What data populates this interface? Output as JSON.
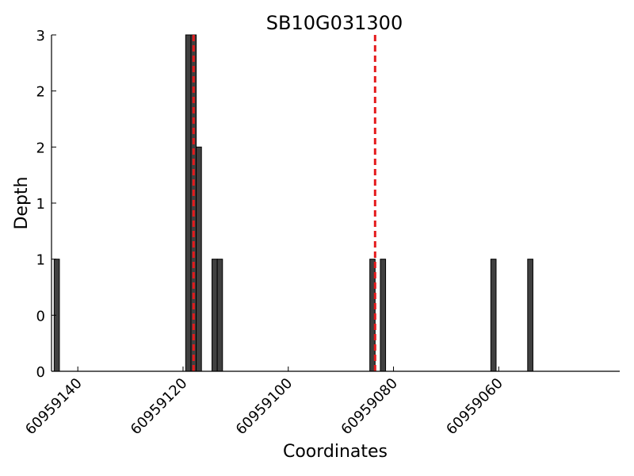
{
  "chart_data": {
    "type": "bar",
    "title": "SB10G031300",
    "xlabel": "Coordinates",
    "ylabel": "Depth",
    "x_axis_reversed": true,
    "xlim": [
      60959145,
      60959037
    ],
    "ylim": [
      0,
      3
    ],
    "x_ticks": [
      {
        "value": 60959140,
        "label": "60959140"
      },
      {
        "value": 60959120,
        "label": "60959120"
      },
      {
        "value": 60959100,
        "label": "60959100"
      },
      {
        "value": 60959080,
        "label": "60959080"
      },
      {
        "value": 60959060,
        "label": "60959060"
      }
    ],
    "y_ticks": [
      {
        "value": 0,
        "label": "0"
      },
      {
        "value": 0.5,
        "label": "0"
      },
      {
        "value": 1,
        "label": "1"
      },
      {
        "value": 1.5,
        "label": "1"
      },
      {
        "value": 2,
        "label": "2"
      },
      {
        "value": 2.5,
        "label": "2"
      },
      {
        "value": 3,
        "label": "3"
      }
    ],
    "bar_color": "#404040",
    "bars": [
      {
        "x": 60959144,
        "value": 1
      },
      {
        "x": 60959119,
        "value": 3
      },
      {
        "x": 60959118,
        "value": 3
      },
      {
        "x": 60959117,
        "value": 2
      },
      {
        "x": 60959114,
        "value": 1
      },
      {
        "x": 60959113,
        "value": 1
      },
      {
        "x": 60959084,
        "value": 1
      },
      {
        "x": 60959082,
        "value": 1
      },
      {
        "x": 60959061,
        "value": 1
      },
      {
        "x": 60959054,
        "value": 1
      }
    ],
    "reference_lines": [
      {
        "x": 60959118,
        "color": "#e41a1c",
        "style": "dashed"
      },
      {
        "x": 60959083.5,
        "color": "#e41a1c",
        "style": "dashed"
      }
    ],
    "grid": false
  }
}
